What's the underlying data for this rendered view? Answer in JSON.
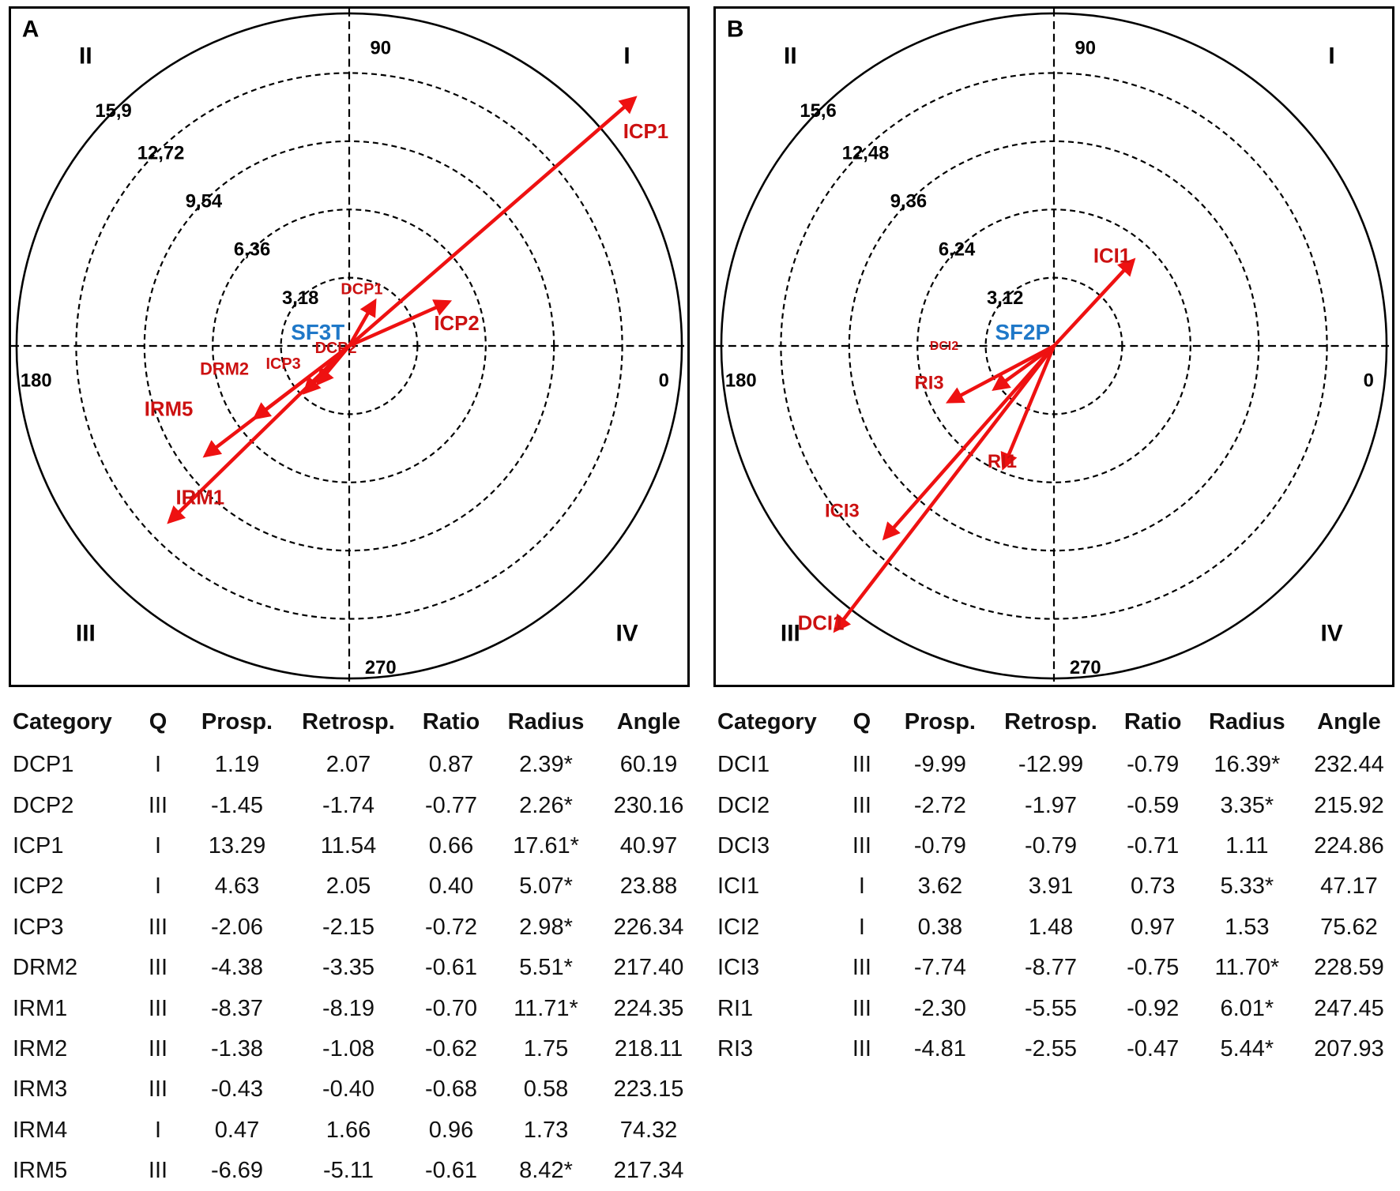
{
  "colors": {
    "vector": "#ee1111",
    "vector_label": "#cc1111",
    "center_label": "#1f78c8",
    "axis": "#000000"
  },
  "chart_data": [
    {
      "type": "polar-vector",
      "panel_label": "A",
      "center_label": "SF3T",
      "ring_labels": [
        "3,18",
        "6,36",
        "9,54",
        "12,72",
        "15,9"
      ],
      "ring_values": [
        3.18,
        6.36,
        9.54,
        12.72,
        15.9
      ],
      "angle_labels": [
        "90",
        "180",
        "0",
        "270"
      ],
      "quadrant_labels": [
        "I",
        "II",
        "III",
        "IV"
      ],
      "vectors": [
        {
          "name": "DCP1",
          "radius": 2.39,
          "angle": 60.19
        },
        {
          "name": "DCP2",
          "radius": 2.26,
          "angle": 230.16
        },
        {
          "name": "ICP1",
          "radius": 17.61,
          "angle": 40.97
        },
        {
          "name": "ICP2",
          "radius": 5.07,
          "angle": 23.88
        },
        {
          "name": "ICP3",
          "radius": 2.98,
          "angle": 226.34
        },
        {
          "name": "DRM2",
          "radius": 5.51,
          "angle": 217.4
        },
        {
          "name": "IRM1",
          "radius": 11.71,
          "angle": 224.35
        },
        {
          "name": "IRM5",
          "radius": 8.42,
          "angle": 217.34
        }
      ],
      "table": {
        "headers": [
          "Category",
          "Q",
          "Prosp.",
          "Retrosp.",
          "Ratio",
          "Radius",
          "Angle"
        ],
        "rows": [
          [
            "DCP1",
            "I",
            "1.19",
            "2.07",
            "0.87",
            "2.39*",
            "60.19"
          ],
          [
            "DCP2",
            "III",
            "-1.45",
            "-1.74",
            "-0.77",
            "2.26*",
            "230.16"
          ],
          [
            "ICP1",
            "I",
            "13.29",
            "11.54",
            "0.66",
            "17.61*",
            "40.97"
          ],
          [
            "ICP2",
            "I",
            "4.63",
            "2.05",
            "0.40",
            "5.07*",
            "23.88"
          ],
          [
            "ICP3",
            "III",
            "-2.06",
            "-2.15",
            "-0.72",
            "2.98*",
            "226.34"
          ],
          [
            "DRM2",
            "III",
            "-4.38",
            "-3.35",
            "-0.61",
            "5.51*",
            "217.40"
          ],
          [
            "IRM1",
            "III",
            "-8.37",
            "-8.19",
            "-0.70",
            "11.71*",
            "224.35"
          ],
          [
            "IRM2",
            "III",
            "-1.38",
            "-1.08",
            "-0.62",
            "1.75",
            "218.11"
          ],
          [
            "IRM3",
            "III",
            "-0.43",
            "-0.40",
            "-0.68",
            "0.58",
            "223.15"
          ],
          [
            "IRM4",
            "I",
            "0.47",
            "1.66",
            "0.96",
            "1.73",
            "74.32"
          ],
          [
            "IRM5",
            "III",
            "-6.69",
            "-5.11",
            "-0.61",
            "8.42*",
            "217.34"
          ]
        ]
      }
    },
    {
      "type": "polar-vector",
      "panel_label": "B",
      "center_label": "SF2P",
      "ring_labels": [
        "3,12",
        "6,24",
        "9,36",
        "12,48",
        "15,6"
      ],
      "ring_values": [
        3.12,
        6.24,
        9.36,
        12.48,
        15.6
      ],
      "angle_labels": [
        "90",
        "180",
        "0",
        "270"
      ],
      "quadrant_labels": [
        "I",
        "II",
        "III",
        "IV"
      ],
      "vectors": [
        {
          "name": "DCI1",
          "radius": 16.39,
          "angle": 232.44
        },
        {
          "name": "DCI2",
          "radius": 3.35,
          "angle": 215.92
        },
        {
          "name": "ICI1",
          "radius": 5.33,
          "angle": 47.17
        },
        {
          "name": "ICI3",
          "radius": 11.7,
          "angle": 228.59
        },
        {
          "name": "RI1",
          "radius": 6.01,
          "angle": 247.45
        },
        {
          "name": "RI3",
          "radius": 5.44,
          "angle": 207.93
        }
      ],
      "table": {
        "headers": [
          "Category",
          "Q",
          "Prosp.",
          "Retrosp.",
          "Ratio",
          "Radius",
          "Angle"
        ],
        "rows": [
          [
            "DCI1",
            "III",
            "-9.99",
            "-12.99",
            "-0.79",
            "16.39*",
            "232.44"
          ],
          [
            "DCI2",
            "III",
            "-2.72",
            "-1.97",
            "-0.59",
            "3.35*",
            "215.92"
          ],
          [
            "DCI3",
            "III",
            "-0.79",
            "-0.79",
            "-0.71",
            "1.11",
            "224.86"
          ],
          [
            "ICI1",
            "I",
            "3.62",
            "3.91",
            "0.73",
            "5.33*",
            "47.17"
          ],
          [
            "ICI2",
            "I",
            "0.38",
            "1.48",
            "0.97",
            "1.53",
            "75.62"
          ],
          [
            "ICI3",
            "III",
            "-7.74",
            "-8.77",
            "-0.75",
            "11.70*",
            "228.59"
          ],
          [
            "RI1",
            "III",
            "-2.30",
            "-5.55",
            "-0.92",
            "6.01*",
            "247.45"
          ],
          [
            "RI3",
            "III",
            "-4.81",
            "-2.55",
            "-0.47",
            "5.44*",
            "207.93"
          ]
        ]
      }
    }
  ]
}
